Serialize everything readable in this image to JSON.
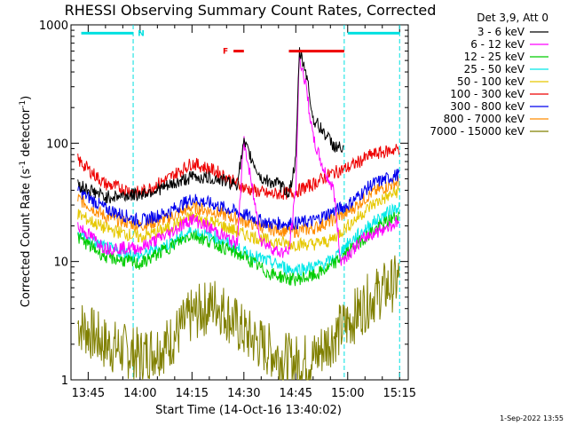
{
  "chart_data": {
    "type": "line",
    "title": "RHESSI Observing Summary Count Rates, Corrected",
    "xlabel": "Start Time (14-Oct-16 13:40:02)",
    "ylabel": "Corrected Count Rate (s⁻¹ detector⁻¹)",
    "ylabel_base": "Corrected Count Rate (s",
    "ylabel_sup1": "-1",
    "ylabel_mid": " detector",
    "ylabel_sup2": "-1",
    "ylabel_end": ")",
    "y_scale": "log",
    "ylim": [
      1,
      1000
    ],
    "xlim": [
      "13:40:02",
      "15:17:30"
    ],
    "x_ticks": [
      "13:45",
      "14:00",
      "14:15",
      "14:30",
      "14:45",
      "15:00",
      "15:15"
    ],
    "y_ticks": [
      "1",
      "10",
      "100",
      "1000"
    ],
    "legend_title": "Det 3,9, Att 0",
    "legend_position": "outside-right",
    "timestamp": "1-Sep-2022 13:55",
    "annotations": [
      {
        "label": "N",
        "color": "#00e0e0",
        "ranges": [
          [
            "13:43",
            "13:58"
          ],
          [
            "15:00",
            "15:15"
          ]
        ]
      },
      {
        "label": "F",
        "color": "#ee0000",
        "ranges": [
          [
            "14:27",
            "14:30"
          ],
          [
            "14:43",
            "14:59"
          ]
        ]
      }
    ],
    "night_boundaries": [
      "13:58",
      "14:59",
      "15:15"
    ],
    "series": [
      {
        "name": "3 - 6 keV",
        "color": "#000000",
        "x": [
          "13:42",
          "13:50",
          "14:00",
          "14:08",
          "14:15",
          "14:22",
          "14:28",
          "14:30",
          "14:35",
          "14:40",
          "14:43",
          "14:45",
          "14:46",
          "14:48",
          "14:50",
          "14:53",
          "14:56",
          "14:59"
        ],
        "values": [
          45,
          35,
          37,
          43,
          52,
          50,
          45,
          100,
          50,
          45,
          38,
          70,
          600,
          400,
          160,
          125,
          95,
          88
        ]
      },
      {
        "name": "6 - 12 keV",
        "color": "#ff00ff",
        "x": [
          "13:42",
          "13:50",
          "14:00",
          "14:08",
          "14:15",
          "14:22",
          "14:28",
          "14:30",
          "14:35",
          "14:40",
          "14:43",
          "14:45",
          "14:46",
          "14:48",
          "14:50",
          "14:53",
          "14:56",
          "14:58",
          "15:05",
          "15:15"
        ],
        "values": [
          20,
          13,
          13,
          17,
          23,
          18,
          14,
          105,
          15,
          12,
          12,
          40,
          550,
          300,
          110,
          60,
          40,
          10,
          16,
          22
        ]
      },
      {
        "name": "12 - 25 keV",
        "color": "#00cc00",
        "x": [
          "13:42",
          "13:50",
          "14:00",
          "14:08",
          "14:15",
          "14:22",
          "14:30",
          "14:37",
          "14:44",
          "14:50",
          "14:55",
          "15:00",
          "15:07",
          "15:15"
        ],
        "values": [
          16,
          11,
          9.5,
          13,
          17,
          14,
          11,
          8,
          7,
          7.5,
          9,
          12,
          18,
          25
        ]
      },
      {
        "name": "25 - 50 keV",
        "color": "#00e8e8",
        "x": [
          "13:42",
          "13:50",
          "14:00",
          "14:08",
          "14:15",
          "14:22",
          "14:30",
          "14:37",
          "14:44",
          "14:50",
          "14:55",
          "15:00",
          "15:07",
          "15:15"
        ],
        "values": [
          17,
          13,
          11,
          14,
          18,
          16,
          12,
          10,
          8.5,
          9,
          10,
          14,
          21,
          30
        ]
      },
      {
        "name": "50 - 100 keV",
        "color": "#e6c800",
        "x": [
          "13:42",
          "13:50",
          "14:00",
          "14:08",
          "14:15",
          "14:22",
          "14:30",
          "14:37",
          "14:44",
          "14:50",
          "14:55",
          "15:00",
          "15:07",
          "15:15"
        ],
        "values": [
          25,
          19,
          16,
          19,
          24,
          21,
          17,
          15,
          14,
          14,
          15,
          20,
          30,
          40
        ]
      },
      {
        "name": "100 - 300 keV",
        "color": "#ee0000",
        "x": [
          "13:42",
          "13:50",
          "14:00",
          "14:08",
          "14:15",
          "14:22",
          "14:30",
          "14:37",
          "14:44",
          "14:50",
          "14:55",
          "15:00",
          "15:07",
          "15:15"
        ],
        "values": [
          72,
          45,
          38,
          50,
          68,
          58,
          42,
          37,
          38,
          45,
          55,
          62,
          80,
          90
        ]
      },
      {
        "name": "300 - 800 keV",
        "color": "#0000ee",
        "x": [
          "13:42",
          "13:50",
          "14:00",
          "14:08",
          "14:15",
          "14:22",
          "14:30",
          "14:37",
          "14:44",
          "14:50",
          "14:55",
          "15:00",
          "15:07",
          "15:15"
        ],
        "values": [
          40,
          28,
          22,
          26,
          34,
          30,
          25,
          21,
          21,
          22,
          26,
          30,
          45,
          55
        ]
      },
      {
        "name": "800 - 7000 keV",
        "color": "#ff8c00",
        "x": [
          "13:42",
          "13:50",
          "14:00",
          "14:08",
          "14:15",
          "14:22",
          "14:30",
          "14:37",
          "14:44",
          "14:50",
          "14:55",
          "15:00",
          "15:07",
          "15:15"
        ],
        "values": [
          34,
          24,
          20,
          23,
          29,
          26,
          22,
          19,
          18,
          19,
          22,
          26,
          38,
          48
        ]
      },
      {
        "name": "7000 - 15000 keV",
        "color": "#808000",
        "x": [
          "13:42",
          "13:50",
          "14:00",
          "14:08",
          "14:15",
          "14:22",
          "14:30",
          "14:37",
          "14:44",
          "14:50",
          "14:55",
          "15:00",
          "15:07",
          "15:15"
        ],
        "values": [
          3,
          2,
          1.6,
          2,
          3.5,
          4.5,
          2.5,
          1.8,
          1.4,
          1.5,
          2.2,
          3,
          5,
          7
        ]
      }
    ]
  }
}
